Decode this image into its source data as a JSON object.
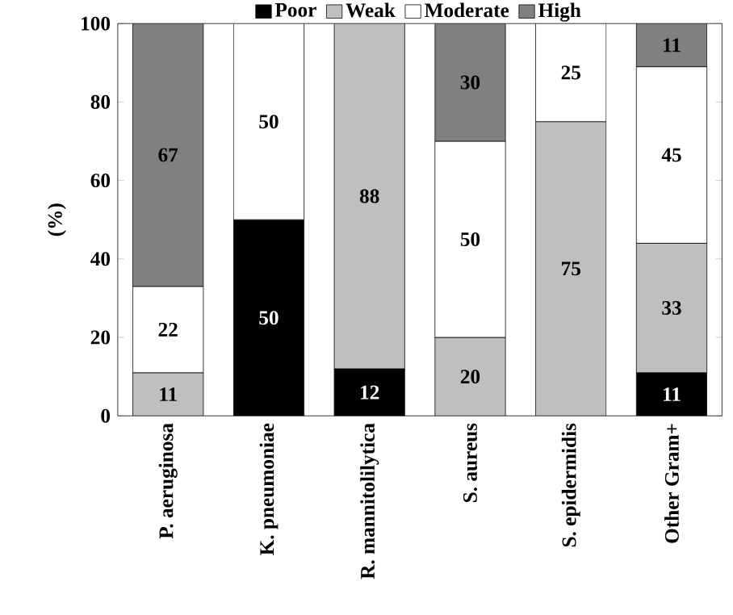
{
  "chart_data": {
    "type": "bar",
    "stacked": true,
    "ylabel": "(%)",
    "categories": [
      "P. aeruginosa",
      "K. pneumoniae",
      "R. mannitolilytica",
      "S. aureus",
      "S. epidermidis",
      "Other Gram+"
    ],
    "series": [
      {
        "name": "Poor",
        "color": "#000000",
        "values": [
          null,
          50,
          12,
          null,
          null,
          11
        ]
      },
      {
        "name": "Weak",
        "color": "#bfbfbf",
        "values": [
          11,
          null,
          88,
          20,
          75,
          33
        ]
      },
      {
        "name": "Moderate",
        "color": "#ffffff",
        "values": [
          22,
          50,
          null,
          50,
          25,
          45
        ]
      },
      {
        "name": "High",
        "color": "#808080",
        "values": [
          67,
          null,
          null,
          30,
          null,
          11
        ]
      }
    ],
    "ylim": [
      0,
      100
    ],
    "yticks": [
      0,
      20,
      40,
      60,
      80,
      100
    ],
    "grid": false,
    "legend": "top",
    "data_labels": true
  }
}
